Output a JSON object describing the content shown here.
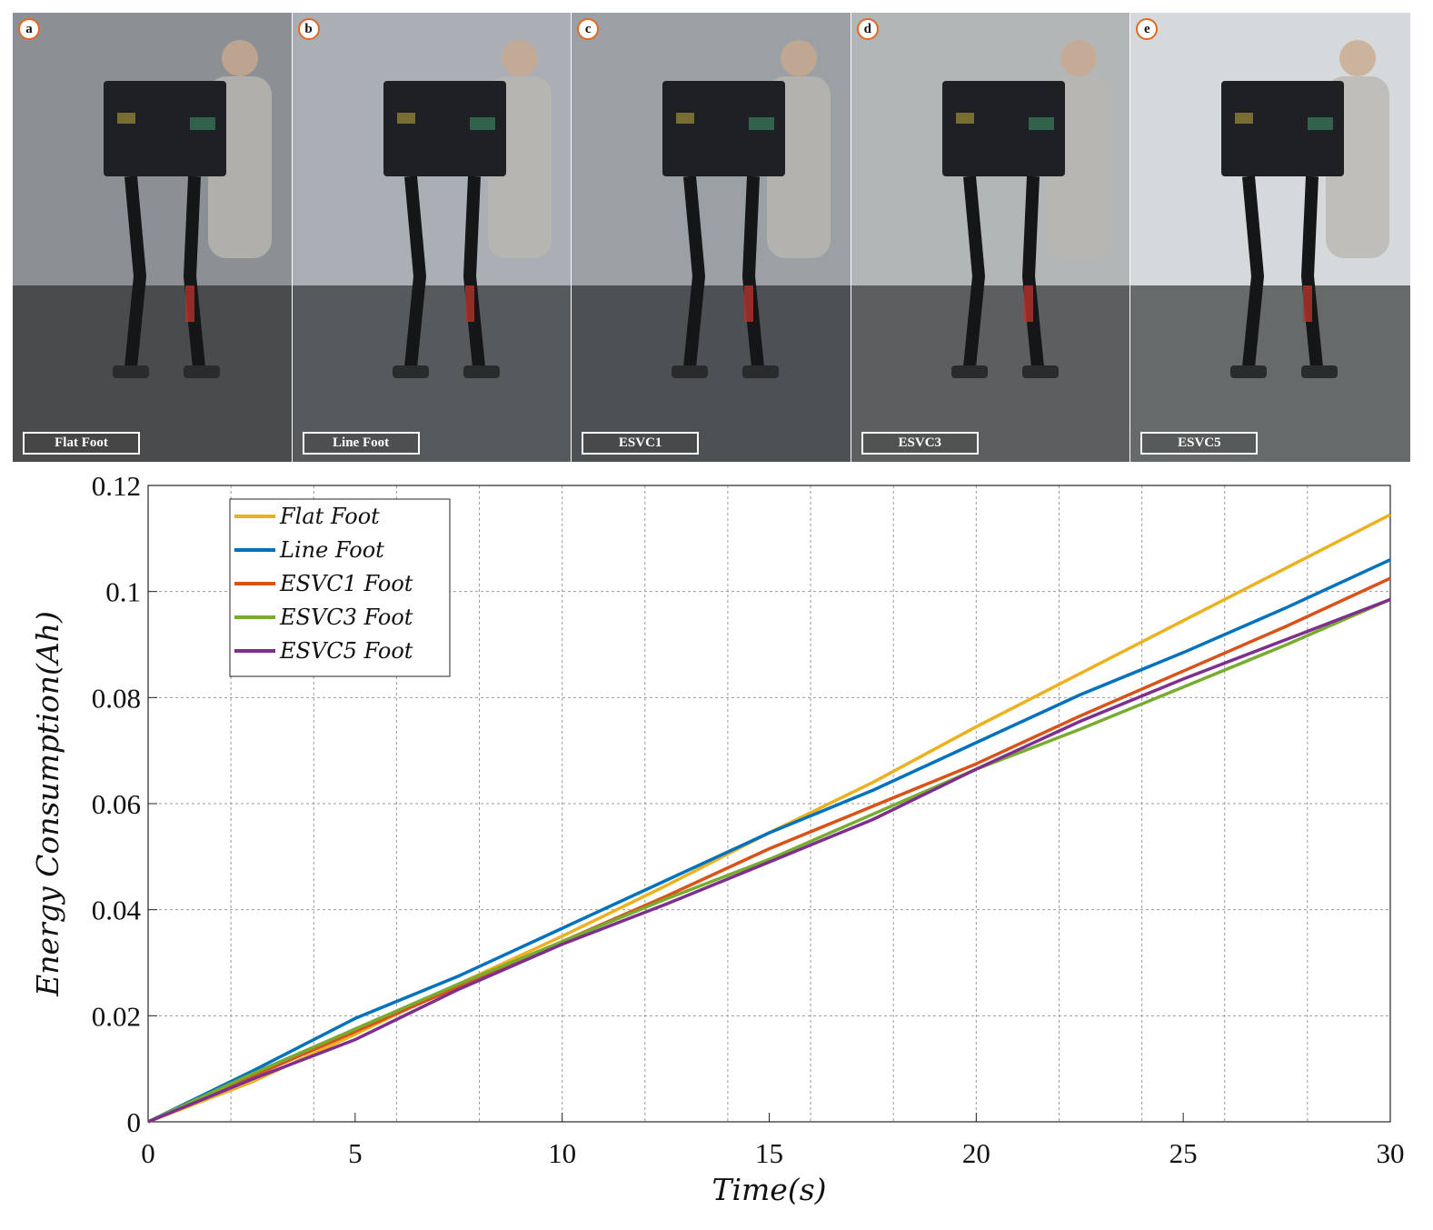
{
  "panels": [
    {
      "letter": "a",
      "caption": "Flat Foot",
      "bg": "#5f6163",
      "floor": "#4a4b4c",
      "wall": "#8c9094"
    },
    {
      "letter": "b",
      "caption": "Line Foot",
      "bg": "#6b6f73",
      "floor": "#565a5c",
      "wall": "#a9afb4"
    },
    {
      "letter": "c",
      "caption": "ESVC1",
      "bg": "#606467",
      "floor": "#4d5153",
      "wall": "#9aa0a4"
    },
    {
      "letter": "d",
      "caption": "ESVC3",
      "bg": "#6a6c6d",
      "floor": "#5c5e5f",
      "wall": "#b3b6b7"
    },
    {
      "letter": "e",
      "caption": "ESVC5",
      "bg": "#6f7274",
      "floor": "#666a6b",
      "wall": "#d6d9db"
    }
  ],
  "chart_data": {
    "type": "line",
    "xlabel": "Time(s)",
    "ylabel": "Energy Consumption(Ah)",
    "xlim": [
      0,
      30
    ],
    "ylim": [
      0,
      0.12
    ],
    "xticks": [
      0,
      5,
      10,
      15,
      20,
      25,
      30
    ],
    "xtick_labels": [
      "0",
      "5",
      "10",
      "15",
      "20",
      "25",
      "30"
    ],
    "yticks": [
      0,
      0.02,
      0.04,
      0.06,
      0.08,
      0.1,
      0.12
    ],
    "ytick_labels": [
      "0",
      "0.02",
      "0.04",
      "0.06",
      "0.08",
      "0.1",
      "0.12"
    ],
    "grid_step_x": 2,
    "grid": true,
    "legend_position": "top-left",
    "x": [
      0,
      2.5,
      5,
      7.5,
      10,
      12.5,
      15,
      17.5,
      20,
      22.5,
      25,
      27.5,
      30
    ],
    "series": [
      {
        "name": "Flat Foot",
        "color": "#edb120",
        "values": [
          0,
          0.0075,
          0.0165,
          0.026,
          0.035,
          0.0445,
          0.0545,
          0.064,
          0.0745,
          0.0845,
          0.0945,
          0.1045,
          0.1145
        ]
      },
      {
        "name": "Line Foot",
        "color": "#0072bd",
        "values": [
          0,
          0.0095,
          0.0195,
          0.0275,
          0.0365,
          0.0455,
          0.0545,
          0.0625,
          0.0715,
          0.0805,
          0.0885,
          0.097,
          0.106
        ]
      },
      {
        "name": "ESVC1 Foot",
        "color": "#d95319",
        "values": [
          0,
          0.0085,
          0.017,
          0.0255,
          0.034,
          0.0425,
          0.0515,
          0.0595,
          0.0675,
          0.0765,
          0.085,
          0.0935,
          0.1025
        ]
      },
      {
        "name": "ESVC3 Foot",
        "color": "#77ac30",
        "values": [
          0,
          0.009,
          0.0175,
          0.026,
          0.034,
          0.042,
          0.0495,
          0.058,
          0.0665,
          0.074,
          0.082,
          0.09,
          0.0985
        ]
      },
      {
        "name": "ESVC5 Foot",
        "color": "#7e2f8e",
        "values": [
          0,
          0.008,
          0.0155,
          0.025,
          0.0335,
          0.041,
          0.049,
          0.057,
          0.0665,
          0.0755,
          0.0835,
          0.091,
          0.0985
        ]
      }
    ]
  }
}
